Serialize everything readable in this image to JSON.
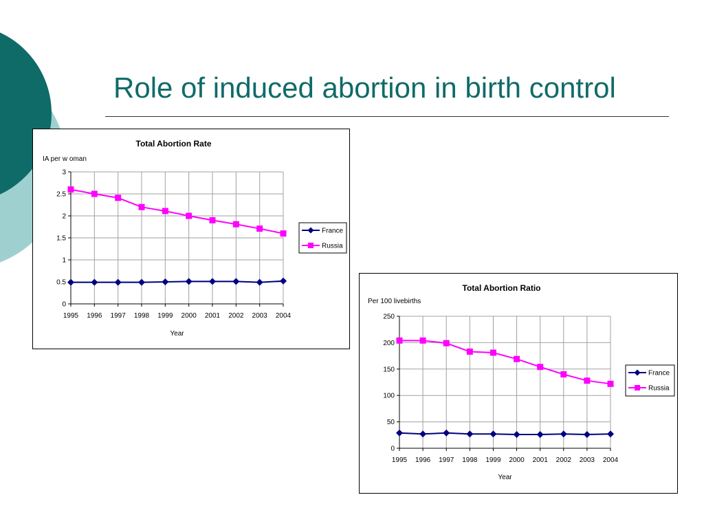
{
  "slide": {
    "title": "Role of induced abortion in birth control",
    "colors": {
      "title": "#0f6b68",
      "circle_dark": "#0f6b68",
      "circle_light": "#9fd0d0"
    }
  },
  "chart_data": [
    {
      "type": "line",
      "title": "Total Abortion Rate",
      "ylabel": "IA per w oman",
      "xlabel": "Year",
      "categories": [
        "1995",
        "1996",
        "1997",
        "1998",
        "1999",
        "2000",
        "2001",
        "2002",
        "2003",
        "2004"
      ],
      "ylim": [
        0,
        3
      ],
      "yticks": [
        "0",
        "0.5",
        "1",
        "1.5",
        "2",
        "2.5",
        "3"
      ],
      "grid": true,
      "legend_position": "right",
      "series": [
        {
          "name": "France",
          "color": "#000080",
          "marker": "diamond",
          "values": [
            0.49,
            0.49,
            0.49,
            0.49,
            0.5,
            0.51,
            0.51,
            0.51,
            0.49,
            0.52
          ]
        },
        {
          "name": "Russia",
          "color": "#ff00ff",
          "marker": "square",
          "values": [
            2.6,
            2.5,
            2.41,
            2.2,
            2.11,
            2.0,
            1.9,
            1.81,
            1.71,
            1.6
          ]
        }
      ]
    },
    {
      "type": "line",
      "title": "Total Abortion Ratio",
      "ylabel": "Per 100 livebirths",
      "xlabel": "Year",
      "categories": [
        "1995",
        "1996",
        "1997",
        "1998",
        "1999",
        "2000",
        "2001",
        "2002",
        "2003",
        "2004"
      ],
      "ylim": [
        0,
        250
      ],
      "yticks": [
        "0",
        "50",
        "100",
        "150",
        "200",
        "250"
      ],
      "grid": true,
      "legend_position": "right",
      "series": [
        {
          "name": "France",
          "color": "#000080",
          "marker": "diamond",
          "values": [
            29,
            27,
            29,
            27,
            27,
            26,
            26,
            27,
            26,
            27
          ]
        },
        {
          "name": "Russia",
          "color": "#ff00ff",
          "marker": "square",
          "values": [
            204,
            204,
            199,
            183,
            181,
            169,
            154,
            140,
            128,
            122
          ]
        }
      ]
    }
  ]
}
